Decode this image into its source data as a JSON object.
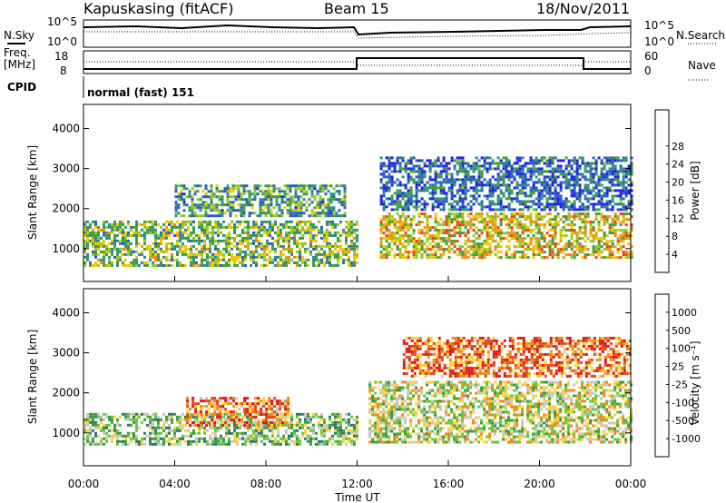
{
  "header": {
    "station": "Kapuskasing (fitACF)",
    "beam": "Beam 15",
    "date": "18/Nov/2011"
  },
  "top_panels": {
    "nsky_label": "N.Sky",
    "nsearch_label": "N.Search",
    "noise_tick_hi": "10^5",
    "noise_tick_lo": "10^0",
    "freq_label": "Freq.",
    "freq_unit": "[MHz]",
    "freq_tick_hi": "18",
    "freq_tick_lo": "8",
    "nave_label": "Nave",
    "nave_tick_hi": "60",
    "nave_tick_lo": "0",
    "cpid_label": "CPID",
    "cpid_value": "normal (fast) 151"
  },
  "chart_data": [
    {
      "type": "heatmap",
      "name": "power",
      "ylabel": "Slant Range [km]",
      "ylim": [
        180,
        4600
      ],
      "yticks": [
        "1000",
        "2000",
        "3000",
        "4000"
      ],
      "colorbar_label": "Power [dB]",
      "colorbar_ticks": [
        "4",
        "8",
        "12",
        "16",
        "20",
        "24",
        "28"
      ],
      "colors": [
        "#2020e6",
        "#2a5cc8",
        "#2e8c8c",
        "#3ca03c",
        "#96c828",
        "#f0c800",
        "#f08c14",
        "#e64614",
        "#e61414"
      ],
      "regions": [
        {
          "t0": 0.0,
          "t1": 12.0,
          "r_lo": 600,
          "r_hi": 1700,
          "level": 0.45
        },
        {
          "t0": 4.0,
          "t1": 11.5,
          "r_lo": 1800,
          "r_hi": 2600,
          "level": 0.35
        },
        {
          "t0": 13.0,
          "t1": 24.0,
          "r_lo": 800,
          "r_hi": 1900,
          "level": 0.6
        },
        {
          "t0": 13.0,
          "t1": 24.0,
          "r_lo": 2000,
          "r_hi": 3300,
          "level": 0.2
        }
      ]
    },
    {
      "type": "heatmap",
      "name": "velocity",
      "ylabel": "Slant Range [km]",
      "xlabel": "Time UT",
      "xticks": [
        "00:00",
        "04:00",
        "08:00",
        "12:00",
        "16:00",
        "20:00",
        "00:00"
      ],
      "ylim": [
        180,
        4600
      ],
      "yticks": [
        "1000",
        "2000",
        "3000",
        "4000"
      ],
      "colorbar_label": "Velocity [m s⁻¹]",
      "colorbar_ticks": [
        "1000",
        "500",
        "100",
        "25",
        "-25",
        "-100",
        "-500",
        "-1000"
      ],
      "colors": [
        "#2a3cc8",
        "#287878",
        "#3c9c3c",
        "#64c83c",
        "#c8c8c0",
        "#ffd23c",
        "#f08c14",
        "#e64614",
        "#e61414"
      ],
      "regions": [
        {
          "t0": 0.0,
          "t1": 12.0,
          "r_lo": 700,
          "r_hi": 1500,
          "level": 0.4
        },
        {
          "t0": 4.5,
          "t1": 9.0,
          "r_lo": 1200,
          "r_hi": 1900,
          "level": 0.75
        },
        {
          "t0": 12.5,
          "t1": 24.0,
          "r_lo": 800,
          "r_hi": 2300,
          "level": 0.5
        },
        {
          "t0": 14.0,
          "t1": 24.0,
          "r_lo": 2400,
          "r_hi": 3400,
          "level": 0.8
        }
      ]
    }
  ]
}
